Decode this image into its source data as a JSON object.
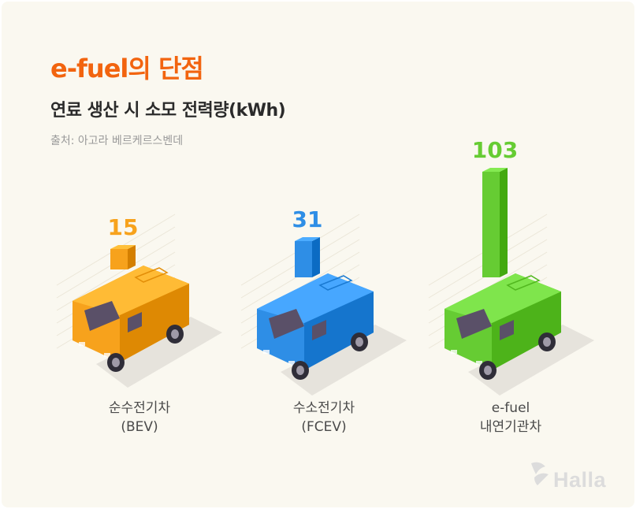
{
  "title": "e-fuel의 단점",
  "subtitle": "연료 생산 시 소모 전력량(kWh)",
  "source": "출처: 아고라 베르케르스벤데",
  "brand": "Halla",
  "colors": {
    "accent": "#f2640f",
    "bev": "#f7a21c",
    "fcev": "#2e8ee6",
    "efuel": "#66cc33",
    "label": "#4a4a4a"
  },
  "categories": [
    {
      "line1": "순수전기차",
      "line2": "(BEV)"
    },
    {
      "line1": "수소전기차",
      "line2": "(FCEV)"
    },
    {
      "line1": "e-fuel",
      "line2": "내연기관차"
    }
  ],
  "chart_data": {
    "type": "bar",
    "title": "e-fuel의 단점",
    "subtitle": "연료 생산 시 소모 전력량(kWh)",
    "categories": [
      "순수전기차(BEV)",
      "수소전기차(FCEV)",
      "e-fuel 내연기관차"
    ],
    "values": [
      15,
      31,
      103
    ],
    "value_labels": [
      "15",
      "31",
      "103"
    ],
    "bar_colors": [
      "#f7a21c",
      "#2e8ee6",
      "#66cc33"
    ],
    "grid": false,
    "legend": "none"
  }
}
